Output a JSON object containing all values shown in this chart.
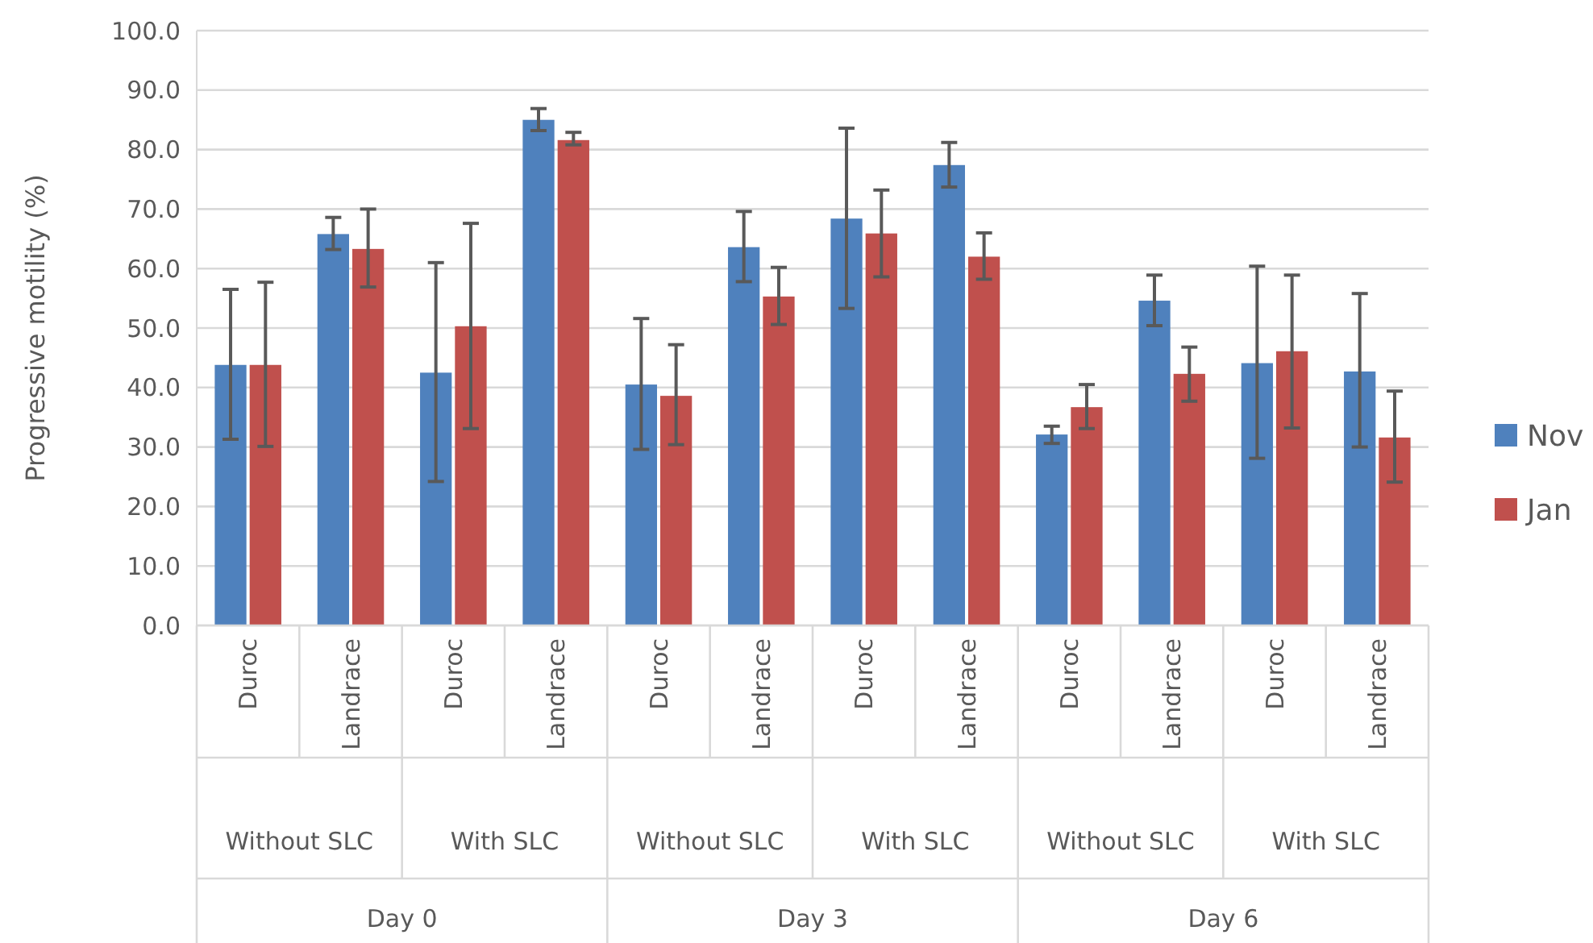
{
  "chart_data": {
    "type": "bar",
    "ylabel": "Progressive motility (%)",
    "categories": [
      "Duroc",
      "Landrace",
      "Duroc",
      "Landrace",
      "Duroc",
      "Landrace",
      "Duroc",
      "Landrace",
      "Duroc",
      "Landrace",
      "Duroc",
      "Landrace"
    ],
    "series": [
      {
        "name": "Nov",
        "color": "#4f81bd",
        "values": [
          43.8,
          65.8,
          42.5,
          85.0,
          40.5,
          63.6,
          68.4,
          77.4,
          32.1,
          54.6,
          44.1,
          42.7
        ],
        "errors": [
          [
            31.3,
            56.5
          ],
          [
            63.2,
            68.6
          ],
          [
            24.2,
            61.0
          ],
          [
            83.2,
            86.9
          ],
          [
            29.6,
            51.6
          ],
          [
            57.8,
            69.6
          ],
          [
            53.3,
            83.6
          ],
          [
            73.7,
            81.2
          ],
          [
            30.6,
            33.5
          ],
          [
            50.4,
            58.9
          ],
          [
            28.1,
            60.4
          ],
          [
            30.0,
            55.8
          ]
        ]
      },
      {
        "name": "Jan",
        "color": "#c0504d",
        "values": [
          43.8,
          63.3,
          50.3,
          81.6,
          38.6,
          55.3,
          65.9,
          62.0,
          36.7,
          42.3,
          46.1,
          31.6
        ],
        "errors": [
          [
            30.1,
            57.7
          ],
          [
            56.9,
            70.0
          ],
          [
            33.1,
            67.6
          ],
          [
            80.8,
            82.9
          ],
          [
            30.4,
            47.2
          ],
          [
            50.6,
            60.2
          ],
          [
            58.6,
            73.2
          ],
          [
            58.2,
            66.0
          ],
          [
            33.1,
            40.5
          ],
          [
            37.7,
            46.8
          ],
          [
            33.2,
            58.9
          ],
          [
            24.1,
            39.4
          ]
        ]
      }
    ],
    "annotations": [
      "Without SLC",
      "With SLC",
      "Without SLC",
      "With SLC",
      "Without SLC",
      "With SLC",
      "Day 0",
      "Day 3",
      "Day 6"
    ],
    "ylim": [
      0,
      100
    ],
    "yticks": [
      {
        "value": 0,
        "label": "0.0"
      },
      {
        "value": 10,
        "label": "10.0"
      },
      {
        "value": 20,
        "label": "20.0"
      },
      {
        "value": 30,
        "label": "30.0"
      },
      {
        "value": 40,
        "label": "40.0"
      },
      {
        "value": 50,
        "label": "50.0"
      },
      {
        "value": 60,
        "label": "60.0"
      },
      {
        "value": 70,
        "label": "70.0"
      },
      {
        "value": 80,
        "label": "80.0"
      },
      {
        "value": 90,
        "label": "90.0"
      },
      {
        "value": 100,
        "label": "100.0"
      }
    ],
    "grid": "y",
    "legend": "right"
  }
}
